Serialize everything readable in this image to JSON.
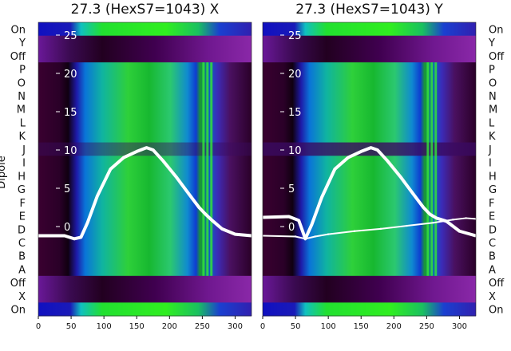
{
  "chart_data": [
    {
      "type": "heatmap",
      "title": "27.3 (HexS7=1043) X",
      "ylabel": "Dipole",
      "x_ticks": [
        "0",
        "50",
        "100",
        "150",
        "200",
        "250",
        "300"
      ],
      "xlim": [
        0,
        325
      ],
      "y_ticks": [
        "0",
        "5",
        "10",
        "15",
        "20",
        "25"
      ],
      "y_tick_values": [
        0,
        5,
        10,
        15,
        20,
        25
      ],
      "rows_top_to_bottom": [
        "On",
        "Y",
        "Off",
        "P",
        "O",
        "N",
        "M",
        "L",
        "K",
        "J",
        "I",
        "H",
        "G",
        "F",
        "E",
        "D",
        "C",
        "B",
        "A",
        "Off",
        "X",
        "On"
      ],
      "series": [
        {
          "name": "",
          "x": [
            0,
            40,
            55,
            65,
            75,
            90,
            110,
            130,
            150,
            165,
            175,
            190,
            210,
            230,
            245,
            255,
            265,
            280,
            300,
            325
          ],
          "y": [
            -1.2,
            -1.2,
            -1.6,
            -1.4,
            0.5,
            4.0,
            7.5,
            9.0,
            9.8,
            10.3,
            10.0,
            8.6,
            6.5,
            4.2,
            2.5,
            1.6,
            0.8,
            -0.3,
            -1.0,
            -1.2
          ]
        }
      ]
    },
    {
      "type": "heatmap",
      "title": "27.3 (HexS7=1043) Y",
      "x_ticks": [
        "0",
        "50",
        "100",
        "150",
        "200",
        "250",
        "300"
      ],
      "xlim": [
        0,
        325
      ],
      "y_ticks": [
        "0",
        "5",
        "10",
        "15",
        "20",
        "25"
      ],
      "y_tick_values": [
        0,
        5,
        10,
        15,
        20,
        25
      ],
      "rows_top_to_bottom": [
        "On",
        "Y",
        "Off",
        "P",
        "O",
        "N",
        "M",
        "L",
        "K",
        "J",
        "I",
        "H",
        "G",
        "F",
        "E",
        "D",
        "C",
        "B",
        "A",
        "Off",
        "X",
        "On"
      ],
      "series": [
        {
          "name": "",
          "x": [
            0,
            40,
            55,
            65,
            75,
            90,
            110,
            130,
            150,
            165,
            175,
            190,
            210,
            230,
            245,
            255,
            265,
            280,
            300,
            325
          ],
          "y": [
            1.2,
            1.3,
            0.8,
            -1.6,
            0.3,
            3.8,
            7.5,
            9.0,
            9.8,
            10.3,
            10.0,
            8.6,
            6.5,
            4.2,
            2.5,
            1.6,
            1.1,
            0.7,
            -0.6,
            -1.2
          ]
        },
        {
          "name": "",
          "x": [
            0,
            50,
            65,
            80,
            100,
            140,
            180,
            220,
            260,
            290,
            310,
            325
          ],
          "y": [
            -1.2,
            -1.3,
            -1.6,
            -1.3,
            -1.0,
            -0.6,
            -0.3,
            0.1,
            0.5,
            0.9,
            1.1,
            1.0
          ]
        }
      ]
    }
  ]
}
